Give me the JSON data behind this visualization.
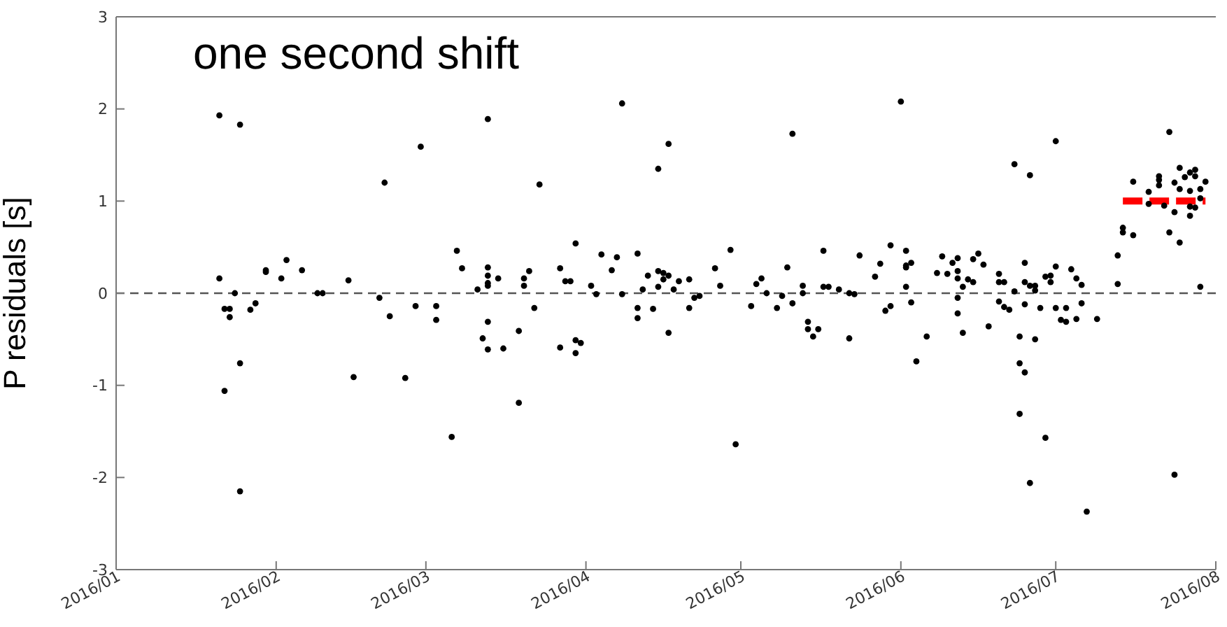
{
  "chart_data": {
    "type": "scatter",
    "title": "one second shift",
    "ylabel": "P residuals [s]",
    "xlim": [
      "2016-01-01",
      "2016-08-01"
    ],
    "xticks": [
      {
        "value": "2016-01-01",
        "label": "2016/01"
      },
      {
        "value": "2016-02-01",
        "label": "2016/02"
      },
      {
        "value": "2016-03-01",
        "label": "2016/03"
      },
      {
        "value": "2016-04-01",
        "label": "2016/04"
      },
      {
        "value": "2016-05-01",
        "label": "2016/05"
      },
      {
        "value": "2016-06-01",
        "label": "2016/06"
      },
      {
        "value": "2016-07-01",
        "label": "2016/07"
      },
      {
        "value": "2016-08-01",
        "label": "2016/08"
      }
    ],
    "ylim": [
      -3,
      3
    ],
    "yticks": [
      -3,
      -2,
      -1,
      0,
      1,
      2,
      3
    ],
    "ref_lines": [
      {
        "axis": "y",
        "value": 0,
        "color": "#555555",
        "line_style": "dashed"
      }
    ],
    "series": [
      {
        "color": "#000000",
        "marker": "circle",
        "x": [
          "2016-01-21",
          "2016-01-25",
          "2016-01-21",
          "2016-01-22",
          "2016-01-23",
          "2016-01-23",
          "2016-01-24",
          "2016-01-22",
          "2016-01-25",
          "2016-01-25",
          "2016-01-27",
          "2016-01-28",
          "2016-01-30",
          "2016-01-30",
          "2016-02-02",
          "2016-02-03",
          "2016-02-06",
          "2016-02-09",
          "2016-02-10",
          "2016-02-15",
          "2016-02-16",
          "2016-02-21",
          "2016-02-23",
          "2016-02-22",
          "2016-02-26",
          "2016-02-28",
          "2016-02-29",
          "2016-03-03",
          "2016-03-03",
          "2016-03-06",
          "2016-03-07",
          "2016-03-08",
          "2016-03-13",
          "2016-03-13",
          "2016-03-13",
          "2016-03-13",
          "2016-03-11",
          "2016-03-15",
          "2016-03-13",
          "2016-03-13",
          "2016-03-12",
          "2016-03-13",
          "2016-03-16",
          "2016-03-19",
          "2016-03-19",
          "2016-03-20",
          "2016-03-20",
          "2016-03-21",
          "2016-03-22",
          "2016-03-23",
          "2016-03-27",
          "2016-03-27",
          "2016-03-28",
          "2016-03-29",
          "2016-03-30",
          "2016-03-30",
          "2016-03-31",
          "2016-03-30",
          "2016-04-02",
          "2016-04-03",
          "2016-04-04",
          "2016-04-06",
          "2016-04-07",
          "2016-04-08",
          "2016-04-08",
          "2016-04-11",
          "2016-04-11",
          "2016-04-11",
          "2016-04-12",
          "2016-04-13",
          "2016-04-14",
          "2016-04-15",
          "2016-04-15",
          "2016-04-15",
          "2016-04-16",
          "2016-04-16",
          "2016-04-17",
          "2016-04-17",
          "2016-04-17",
          "2016-04-18",
          "2016-04-19",
          "2016-04-21",
          "2016-04-21",
          "2016-04-22",
          "2016-04-23",
          "2016-04-26",
          "2016-04-27",
          "2016-04-29",
          "2016-04-30",
          "2016-05-03",
          "2016-05-04",
          "2016-05-05",
          "2016-05-06",
          "2016-05-08",
          "2016-05-09",
          "2016-05-10",
          "2016-05-11",
          "2016-05-11",
          "2016-05-13",
          "2016-05-13",
          "2016-05-14",
          "2016-05-14",
          "2016-05-15",
          "2016-05-16",
          "2016-05-17",
          "2016-05-17",
          "2016-05-18",
          "2016-05-20",
          "2016-05-22",
          "2016-05-22",
          "2016-05-23",
          "2016-05-24",
          "2016-05-27",
          "2016-05-28",
          "2016-05-29",
          "2016-05-30",
          "2016-05-30",
          "2016-06-01",
          "2016-06-02",
          "2016-06-02",
          "2016-06-02",
          "2016-06-03",
          "2016-06-02",
          "2016-06-03",
          "2016-06-04",
          "2016-06-06",
          "2016-06-09",
          "2016-06-08",
          "2016-06-10",
          "2016-06-11",
          "2016-06-12",
          "2016-06-12",
          "2016-06-12",
          "2016-06-12",
          "2016-06-12",
          "2016-06-13",
          "2016-06-13",
          "2016-06-14",
          "2016-06-15",
          "2016-06-15",
          "2016-06-16",
          "2016-06-17",
          "2016-06-18",
          "2016-06-20",
          "2016-06-20",
          "2016-06-21",
          "2016-06-20",
          "2016-06-21",
          "2016-06-22",
          "2016-06-23",
          "2016-06-23",
          "2016-06-24",
          "2016-06-24",
          "2016-06-24",
          "2016-06-25",
          "2016-06-25",
          "2016-06-25",
          "2016-06-25",
          "2016-06-26",
          "2016-06-26",
          "2016-06-26",
          "2016-06-27",
          "2016-06-27",
          "2016-06-27",
          "2016-06-28",
          "2016-06-29",
          "2016-06-29",
          "2016-06-30",
          "2016-06-30",
          "2016-07-01",
          "2016-07-01",
          "2016-07-01",
          "2016-07-02",
          "2016-07-03",
          "2016-07-03",
          "2016-07-04",
          "2016-07-05",
          "2016-07-05",
          "2016-07-06",
          "2016-07-06",
          "2016-07-07",
          "2016-07-09",
          "2016-07-13",
          "2016-07-13",
          "2016-07-14",
          "2016-07-14",
          "2016-07-16",
          "2016-07-16",
          "2016-07-19",
          "2016-07-19",
          "2016-07-21",
          "2016-07-21",
          "2016-07-21",
          "2016-07-22",
          "2016-07-23",
          "2016-07-23",
          "2016-07-24",
          "2016-07-24",
          "2016-07-24",
          "2016-07-25",
          "2016-07-25",
          "2016-07-25",
          "2016-07-26",
          "2016-07-27",
          "2016-07-27",
          "2016-07-27",
          "2016-07-27",
          "2016-07-28",
          "2016-07-28",
          "2016-07-28",
          "2016-07-29",
          "2016-07-29",
          "2016-07-30",
          "2016-07-29"
        ],
        "values": [
          1.93,
          1.83,
          0.16,
          -0.17,
          -0.17,
          -0.26,
          0,
          -1.06,
          -0.76,
          -2.15,
          -0.18,
          -0.11,
          0.25,
          0.23,
          0.16,
          0.36,
          0.25,
          0,
          0,
          0.14,
          -0.91,
          -0.05,
          -0.25,
          1.2,
          -0.92,
          -0.14,
          1.59,
          -0.14,
          -0.29,
          -1.56,
          0.46,
          0.27,
          0.28,
          0.19,
          0.11,
          0.08,
          0.04,
          0.16,
          1.89,
          -0.31,
          -0.49,
          -0.61,
          -0.6,
          -1.19,
          -0.41,
          0.16,
          0.08,
          0.24,
          -0.16,
          1.18,
          0.27,
          -0.59,
          0.13,
          0.13,
          0.54,
          -0.51,
          -0.54,
          -0.65,
          0.08,
          -0.01,
          0.42,
          0.25,
          0.39,
          2.06,
          -0.01,
          -0.16,
          -0.27,
          0.43,
          0.04,
          0.19,
          -0.17,
          0.07,
          1.35,
          0.24,
          0.15,
          0.22,
          1.62,
          -0.43,
          0.19,
          0.04,
          0.13,
          0.15,
          -0.16,
          -0.05,
          -0.03,
          0.27,
          0.08,
          0.47,
          -1.64,
          -0.14,
          0.1,
          0.16,
          0,
          -0.16,
          -0.03,
          0.28,
          1.73,
          -0.11,
          0,
          0.08,
          -0.31,
          -0.39,
          -0.47,
          -0.39,
          0.46,
          0.07,
          0.07,
          0.04,
          -0.49,
          0,
          -0.01,
          0.41,
          0.18,
          0.32,
          -0.19,
          -0.14,
          0.52,
          2.08,
          0.3,
          0.46,
          0.28,
          0.33,
          0.07,
          -0.1,
          -0.74,
          -0.47,
          0.4,
          0.22,
          0.21,
          0.33,
          0.16,
          0.24,
          0.38,
          -0.05,
          -0.22,
          0.07,
          -0.43,
          0.15,
          0.37,
          0.12,
          0.43,
          0.31,
          -0.36,
          0.12,
          0.21,
          0.12,
          -0.09,
          -0.15,
          -0.18,
          0.02,
          1.4,
          -0.47,
          -0.76,
          -1.31,
          -0.86,
          0.33,
          0.12,
          -0.12,
          -2.06,
          1.28,
          0.08,
          -0.5,
          0.03,
          0.08,
          -0.16,
          -1.57,
          0.18,
          0.19,
          0.12,
          1.65,
          -0.16,
          0.29,
          -0.29,
          -0.16,
          -0.31,
          0.26,
          0.16,
          -0.28,
          -0.11,
          0.09,
          -2.37,
          -0.28,
          0.1,
          0.41,
          0.71,
          0.66,
          0.63,
          1.21,
          1.1,
          0.97,
          1.27,
          1.23,
          1.17,
          0.95,
          1.75,
          0.66,
          0.88,
          -1.97,
          1.2,
          1.36,
          1.13,
          0.55,
          1.26,
          0.94,
          0.84,
          1.31,
          1.11,
          1.27,
          0.93,
          1.34,
          1.03,
          1.13,
          1.21,
          0.07
        ]
      },
      {
        "type": "line",
        "color": "#ff0000",
        "line_style": "dashed",
        "marker": "none",
        "x": [
          "2016-07-14",
          "2016-07-30"
        ],
        "values": [
          1,
          1
        ]
      }
    ]
  }
}
